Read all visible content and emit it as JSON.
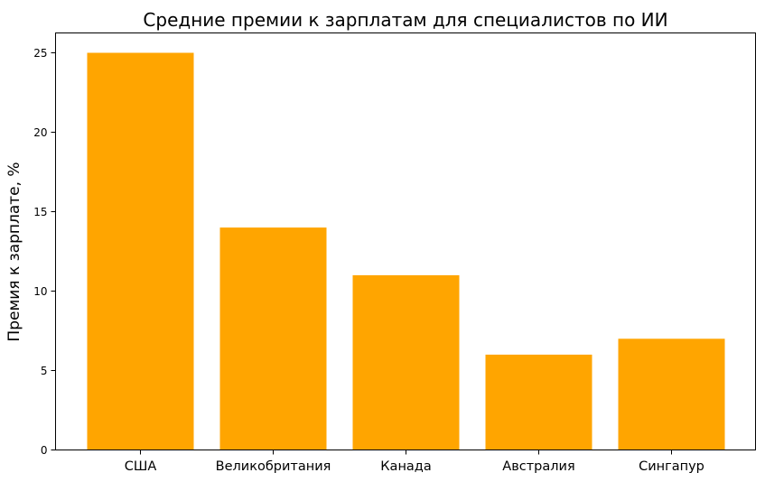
{
  "chart_data": {
    "type": "bar",
    "title": "Средние премии к зарплатам для специалистов по ИИ",
    "xlabel": "",
    "ylabel": "Премия к зарплате, %",
    "categories": [
      "США",
      "Великобритания",
      "Канада",
      "Австралия",
      "Сингапур"
    ],
    "values": [
      25,
      14,
      11,
      6,
      7
    ],
    "ylim": [
      0,
      26.25
    ],
    "yticks": [
      0,
      5,
      10,
      15,
      20,
      25
    ],
    "bar_color": "#FFA500",
    "grid": false,
    "legend": "none"
  }
}
